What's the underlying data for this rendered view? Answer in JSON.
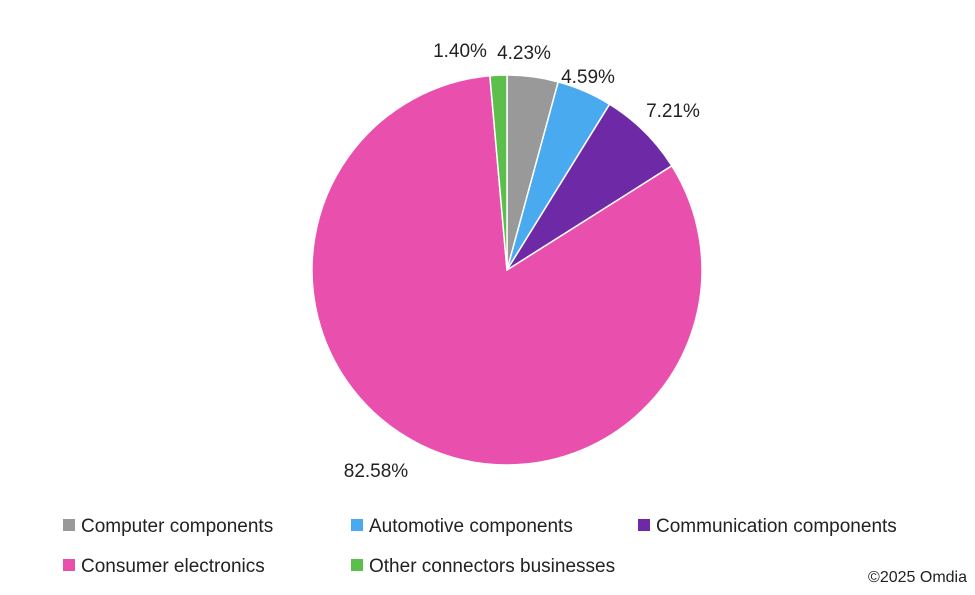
{
  "chart_data": {
    "type": "pie",
    "categories": [
      "Computer components",
      "Automotive components",
      "Communication components",
      "Consumer electronics",
      "Other connectors businesses"
    ],
    "values": [
      4.23,
      4.59,
      7.21,
      82.58,
      1.4
    ],
    "data_labels": [
      "4.23%",
      "4.59%",
      "7.21%",
      "82.58%",
      "1.40%"
    ],
    "colors": [
      "#999999",
      "#4aaaf0",
      "#6e2aa6",
      "#e94fad",
      "#5cbf4c"
    ],
    "unit": "%",
    "start_angle": "12 o'clock",
    "direction": "clockwise",
    "legend_position": "bottom"
  },
  "footer": {
    "copyright": "©2025 Omdia"
  }
}
